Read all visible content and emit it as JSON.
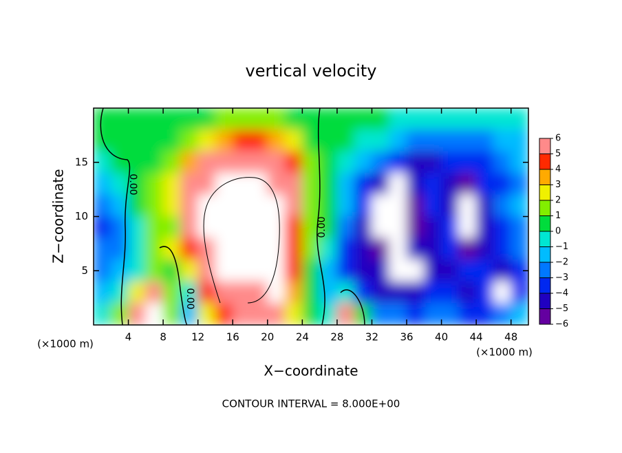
{
  "chart_data": {
    "type": "heatmap",
    "title": "vertical velocity",
    "xlabel": "X−coordinate",
    "ylabel": "Z−coordinate",
    "x_unit_label": "(×1000 m)",
    "footer": "CONTOUR INTERVAL = 8.000E+00",
    "contour_labels": [
      "0.00",
      "0.00",
      "0.00"
    ],
    "xlim": [
      0,
      50
    ],
    "ylim": [
      0,
      20
    ],
    "xticks": [
      4,
      8,
      12,
      16,
      20,
      24,
      28,
      32,
      36,
      40,
      44,
      48
    ],
    "yticks": [
      5,
      10,
      15
    ],
    "x": [
      1,
      3,
      5,
      7,
      9,
      11,
      13,
      15,
      17,
      19,
      21,
      23,
      25,
      27,
      29,
      31,
      33,
      35,
      37,
      39,
      41,
      43,
      45,
      47,
      49
    ],
    "y": [
      19,
      17,
      15,
      13,
      11,
      9,
      7,
      5,
      3,
      1
    ],
    "z": [
      [
        0,
        0,
        0,
        0,
        0,
        0,
        0,
        1,
        1,
        1,
        1,
        0,
        0,
        0,
        0,
        0,
        0,
        -1,
        -1,
        -1,
        -1,
        -1,
        -1,
        -1,
        -1
      ],
      [
        0,
        0,
        0,
        0,
        0,
        1,
        2,
        3,
        4,
        4,
        3,
        2,
        0,
        0,
        0,
        -1,
        -1,
        -2,
        -3,
        -3,
        -3,
        -3,
        -3,
        -2,
        -2
      ],
      [
        -1,
        0,
        0,
        0,
        1,
        3,
        5,
        6,
        6,
        6,
        5,
        4,
        1,
        0,
        -1,
        -2,
        -3,
        -4,
        -5,
        -5,
        -4,
        -4,
        -4,
        -3,
        -2
      ],
      [
        -2,
        -1,
        0,
        1,
        2,
        5,
        6,
        7,
        7,
        7,
        6,
        5,
        1,
        0,
        -2,
        -4,
        -5,
        -7,
        -5,
        -4,
        -5,
        -6,
        -4,
        -4,
        -3
      ],
      [
        -3,
        -2,
        0,
        1,
        2,
        6,
        7,
        7,
        8,
        8,
        7,
        5,
        1,
        0,
        -2,
        -4,
        -7,
        -8,
        -6,
        -4,
        -5,
        -7,
        -5,
        -3,
        -2
      ],
      [
        -4,
        -3,
        -1,
        1,
        1,
        5,
        7,
        7,
        7,
        8,
        7,
        4,
        1,
        0,
        -3,
        -5,
        -7,
        -7,
        -6,
        -5,
        -4,
        -7,
        -5,
        -4,
        -3
      ],
      [
        -3,
        -3,
        -1,
        1,
        2,
        4,
        6,
        7,
        7,
        7,
        7,
        4,
        1,
        -1,
        -4,
        -5,
        -6,
        -7,
        -5,
        -5,
        -4,
        -6,
        -5,
        -4,
        -3
      ],
      [
        -3,
        -2,
        -1,
        1,
        0,
        2,
        5,
        7,
        7,
        7,
        7,
        4,
        0,
        -2,
        -4,
        -5,
        -5,
        -7,
        -7,
        -5,
        -5,
        -4,
        -4,
        -5,
        -4
      ],
      [
        -2,
        -1,
        2,
        5,
        1,
        -1,
        4,
        6,
        6,
        6,
        7,
        3,
        0,
        -2,
        -1,
        -4,
        -5,
        -5,
        -5,
        -4,
        -4,
        -5,
        -4,
        -7,
        -4
      ],
      [
        -1,
        1,
        5,
        7,
        1,
        -2,
        2,
        4,
        5,
        5,
        5,
        2,
        0,
        -1,
        6,
        0,
        -3,
        -3,
        -4,
        -3,
        -3,
        -4,
        -4,
        -3,
        -2
      ]
    ],
    "zlim": [
      -6,
      6
    ],
    "zticks": [
      6,
      5,
      4,
      3,
      2,
      1,
      0,
      {
        "value": -1,
        "label": "−1"
      },
      {
        "value": -2,
        "label": "−2"
      },
      {
        "value": -3,
        "label": "−3"
      },
      {
        "value": -4,
        "label": "−4"
      },
      {
        "value": -5,
        "label": "−5"
      },
      {
        "value": -6,
        "label": "−6"
      }
    ],
    "colors": [
      "#6400a0",
      "#2000c0",
      "#0028f0",
      "#0078ff",
      "#00bcff",
      "#00e6d2",
      "#00dc3c",
      "#82ee00",
      "#f0f000",
      "#ffaa00",
      "#ff2a00",
      "#ff8a8a"
    ],
    "out_of_range_color": "#ffffff"
  }
}
